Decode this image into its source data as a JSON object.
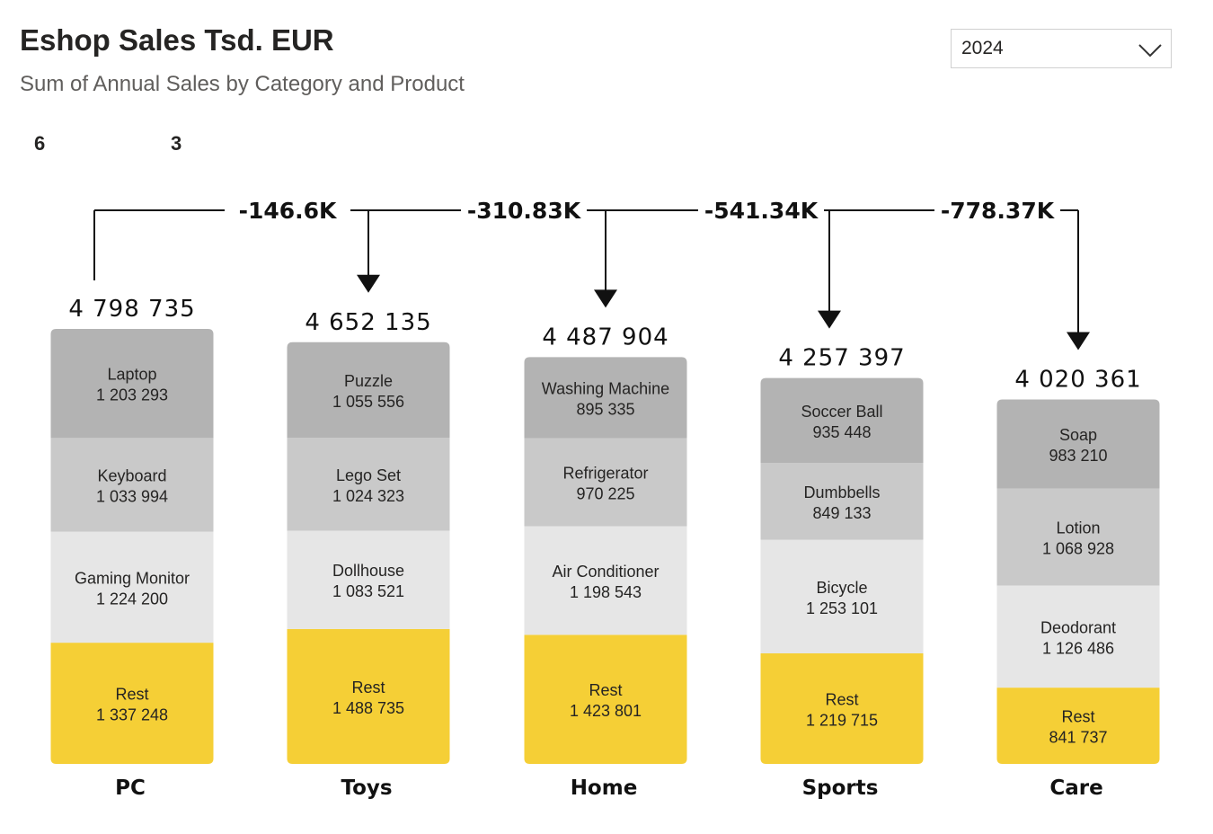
{
  "header": {
    "title": "Eshop Sales Tsd. EUR",
    "subtitle": "Sum of Annual Sales by Category and Product"
  },
  "kpis": [
    "6",
    "3"
  ],
  "year_filter": {
    "selected": "2024",
    "icon": "chevron-down-icon"
  },
  "colors": {
    "top": "#b3b3b3",
    "second": "#c9c9c9",
    "third": "#e6e6e6",
    "rest": "#f5cf36"
  },
  "chart_data": {
    "type": "bar",
    "stacked": true,
    "categories": [
      "PC",
      "Toys",
      "Home",
      "Sports",
      "Care"
    ],
    "totals": [
      "4 798 735",
      "4 652 135",
      "4 487 904",
      "4 257 397",
      "4 020 361"
    ],
    "differences": [
      "-146.6K",
      "-310.83K",
      "-541.34K",
      "-778.37K"
    ],
    "stacks": [
      [
        {
          "name": "Laptop",
          "value": 1203293,
          "label": "1 203 293"
        },
        {
          "name": "Keyboard",
          "value": 1033994,
          "label": "1 033 994"
        },
        {
          "name": "Gaming Monitor",
          "value": 1224200,
          "label": "1 224 200"
        },
        {
          "name": "Rest",
          "value": 1337248,
          "label": "1 337 248"
        }
      ],
      [
        {
          "name": "Puzzle",
          "value": 1055556,
          "label": "1 055 556"
        },
        {
          "name": "Lego Set",
          "value": 1024323,
          "label": "1 024 323"
        },
        {
          "name": "Dollhouse",
          "value": 1083521,
          "label": "1 083 521"
        },
        {
          "name": "Rest",
          "value": 1488735,
          "label": "1 488 735"
        }
      ],
      [
        {
          "name": "Washing Machine",
          "value": 895335,
          "label": "895 335"
        },
        {
          "name": "Refrigerator",
          "value": 970225,
          "label": "970 225"
        },
        {
          "name": "Air Conditioner",
          "value": 1198543,
          "label": "1 198 543"
        },
        {
          "name": "Rest",
          "value": 1423801,
          "label": "1 423 801"
        }
      ],
      [
        {
          "name": "Soccer Ball",
          "value": 935448,
          "label": "935 448"
        },
        {
          "name": "Dumbbells",
          "value": 849133,
          "label": "849 133"
        },
        {
          "name": "Bicycle",
          "value": 1253101,
          "label": "1 253 101"
        },
        {
          "name": "Rest",
          "value": 1219715,
          "label": "1 219 715"
        }
      ],
      [
        {
          "name": "Soap",
          "value": 983210,
          "label": "983 210"
        },
        {
          "name": "Lotion",
          "value": 1068928,
          "label": "1 068 928"
        },
        {
          "name": "Deodorant",
          "value": 1126486,
          "label": "1 126 486"
        },
        {
          "name": "Rest",
          "value": 841737,
          "label": "841 737"
        }
      ]
    ]
  }
}
